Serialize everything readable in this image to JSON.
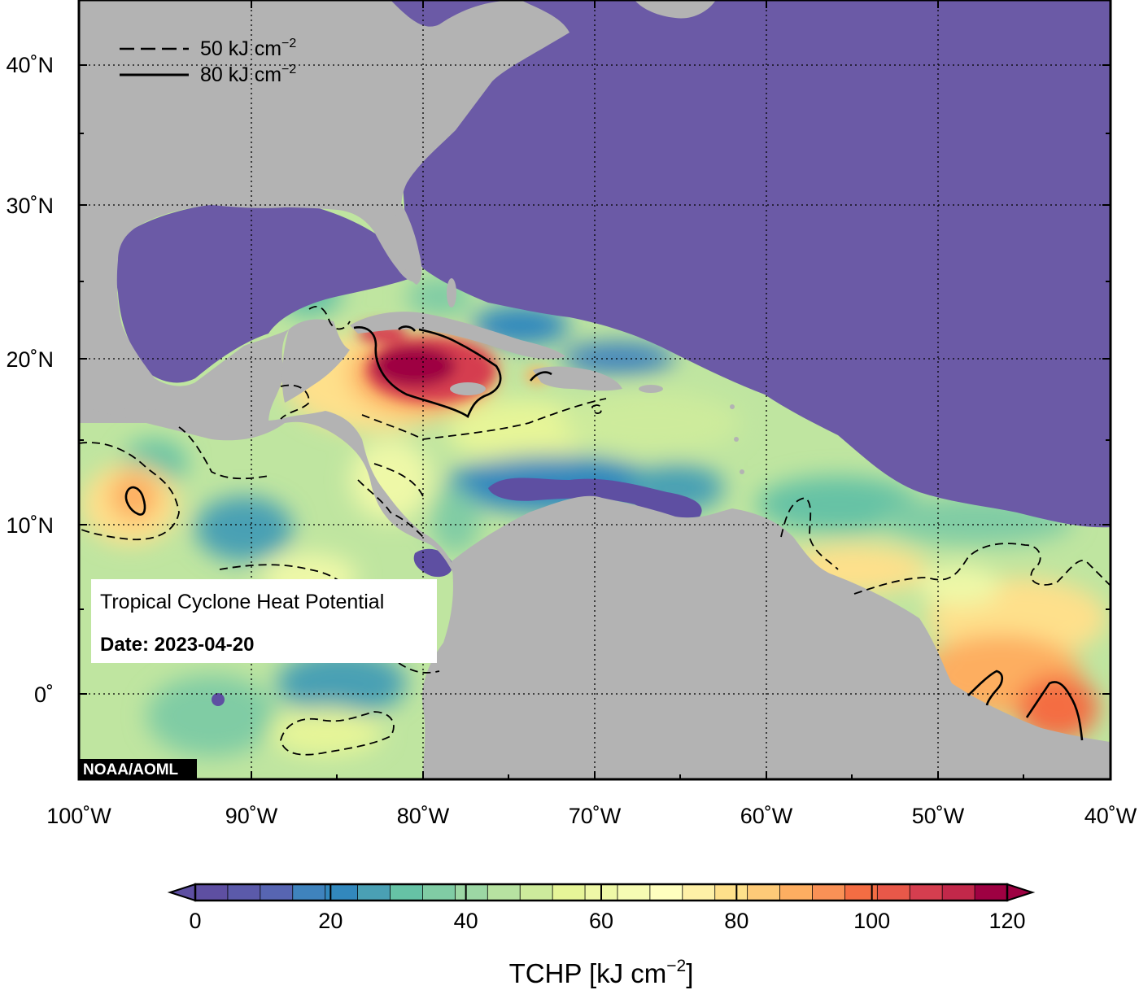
{
  "legend": {
    "dashed_label": "50 kJ cm",
    "solid_label": "80 kJ cm",
    "exponent": "−2"
  },
  "info_box": {
    "title": "Tropical Cyclone Heat Potential",
    "date_label": "Date: 2023-04-20"
  },
  "credit": "NOAA/AOML",
  "lat_ticks": [
    "40˚N",
    "30˚N",
    "20˚N",
    "10˚N",
    "0˚"
  ],
  "lon_ticks": [
    "100˚W",
    "90˚W",
    "80˚W",
    "70˚W",
    "60˚W",
    "50˚W",
    "40˚W"
  ],
  "colorbar": {
    "ticks": [
      "0",
      "20",
      "40",
      "60",
      "80",
      "100",
      "120"
    ],
    "title": "TCHP [kJ cm",
    "title_exponent": "−2",
    "title_close": "]",
    "colors": [
      "#5e4fa2",
      "#5b5aaa",
      "#5765b2",
      "#3f83bd",
      "#3288bd",
      "#4aa0b4",
      "#66c2a5",
      "#80cca4",
      "#9cd7a4",
      "#b7e2a1",
      "#cdeb9c",
      "#e6f598",
      "#eef8a7",
      "#f6fbb3",
      "#ffffbf",
      "#fef0a7",
      "#fee08b",
      "#fdca78",
      "#fdae61",
      "#f99156",
      "#f46d43",
      "#e85849",
      "#d53e4f",
      "#c2284a",
      "#9e0142"
    ],
    "min": 0,
    "max": 120
  },
  "colors": {
    "land": "#b3b3b3",
    "cold_ocean": "#6b5aa6"
  }
}
